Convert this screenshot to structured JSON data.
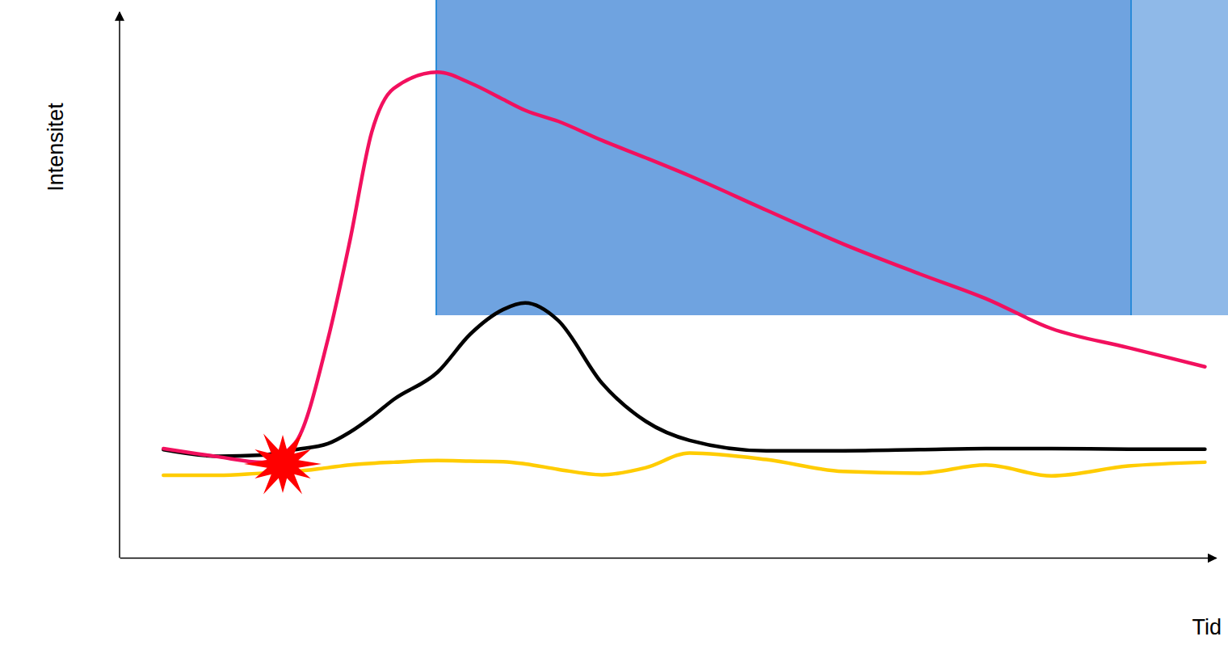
{
  "chart_data": {
    "type": "line",
    "x_label": "Tid",
    "y_label": "Intensitet",
    "x": [
      4,
      9,
      13,
      16,
      19,
      21,
      23,
      25,
      29,
      32,
      35,
      37,
      40,
      44,
      48,
      52,
      59,
      66,
      73,
      79,
      85,
      92,
      99
    ],
    "xlim": [
      0,
      100
    ],
    "ylim": [
      0,
      100
    ],
    "tick_labels": false,
    "grid": false,
    "series": [
      {
        "color": "#f2105e",
        "values": [
          20,
          18.5,
          17.5,
          21,
          40,
          58,
          78,
          86,
          89,
          87,
          84,
          82,
          80,
          76.5,
          73.3,
          70,
          63.7,
          57.5,
          52,
          47.5,
          42,
          38.5,
          35
        ]
      },
      {
        "color": "#000000",
        "values": [
          19.8,
          18.6,
          18.8,
          19.8,
          20.9,
          23,
          25.8,
          29,
          34,
          41,
          45.5,
          46.7,
          43.5,
          32,
          25,
          21.5,
          19.6,
          19.6,
          19.8,
          20,
          20,
          19.9,
          19.9
        ]
      },
      {
        "color": "#ffcc00",
        "values": [
          15.1,
          15.1,
          15.5,
          15.8,
          16.5,
          17,
          17.3,
          17.5,
          17.8,
          17.7,
          17.6,
          17.2,
          16.2,
          15.2,
          16.5,
          19.2,
          18,
          15.8,
          15.5,
          17,
          15,
          16.8,
          17.5
        ]
      }
    ]
  }
}
